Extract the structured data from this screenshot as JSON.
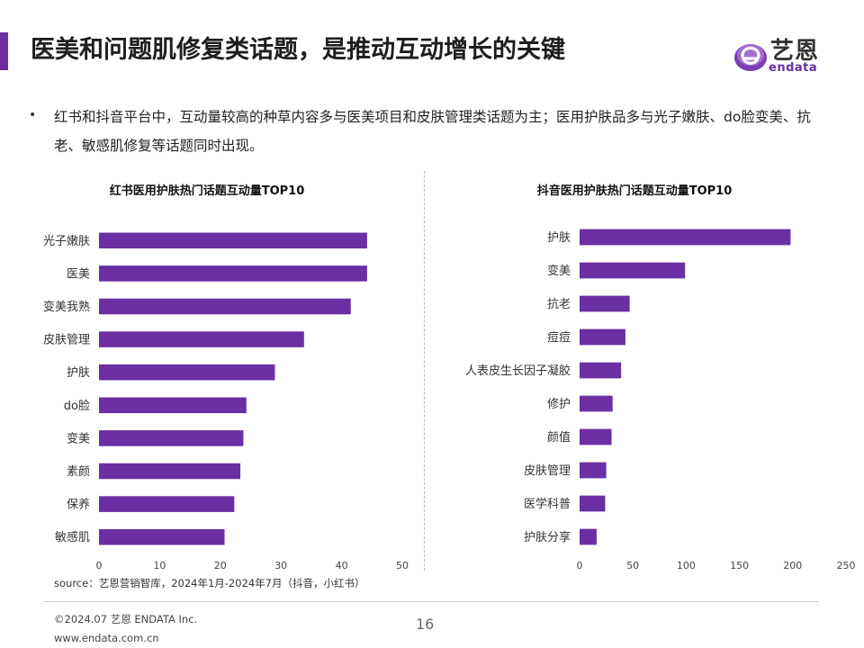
{
  "header": {
    "title": "医美和问题肌修复类话题，是推动互动增长的关键",
    "logo_text": "艺恩",
    "logo_subtext": "endata"
  },
  "bullet": {
    "marker": "•",
    "text": "红书和抖音平台中，互动量较高的种草内容多与医美项目和皮肤管理类话题为主；医用护肤品多与光子嫩肤、do脸变美、抗老、敏感肌修复等话题同时出现。"
  },
  "colors": {
    "accent": "#6b2fa0",
    "bar": "#6c2fa3"
  },
  "chart_data": [
    {
      "type": "bar",
      "orientation": "horizontal",
      "title": "红书医用护肤热门话题互动量TOP10",
      "categories": [
        "光子嫩肤",
        "医美",
        "变美我熟",
        "皮肤管理",
        "护肤",
        "do脸",
        "变美",
        "素颜",
        "保养",
        "敏感肌"
      ],
      "values": [
        44.2,
        44.2,
        41.5,
        33.8,
        29,
        24.3,
        23.8,
        23.3,
        22.3,
        20.7
      ],
      "xlim": [
        0,
        50
      ],
      "xticks": [
        0,
        10,
        20,
        30,
        40,
        50
      ],
      "grid": false,
      "legend": "none"
    },
    {
      "type": "bar",
      "orientation": "horizontal",
      "title": "抖音医用护肤热门话题互动量TOP10",
      "categories": [
        "护肤",
        "变美",
        "抗老",
        "痘痘",
        "人表皮生长因子凝胶",
        "修护",
        "颜值",
        "皮肤管理",
        "医学科普",
        "护肤分享"
      ],
      "values": [
        198,
        99,
        47,
        43,
        39,
        31,
        30,
        25,
        24,
        16
      ],
      "xlim": [
        0,
        250
      ],
      "xticks": [
        0,
        50,
        100,
        150,
        200,
        250
      ],
      "grid": false,
      "legend": "none"
    }
  ],
  "footer": {
    "source": "source：艺恩营销智库，2024年1月-2024年7月（抖音，小红书）",
    "copyright": "©2024.07 艺恩 ENDATA Inc.",
    "website": "www.endata.com.cn",
    "page_number": "16"
  }
}
